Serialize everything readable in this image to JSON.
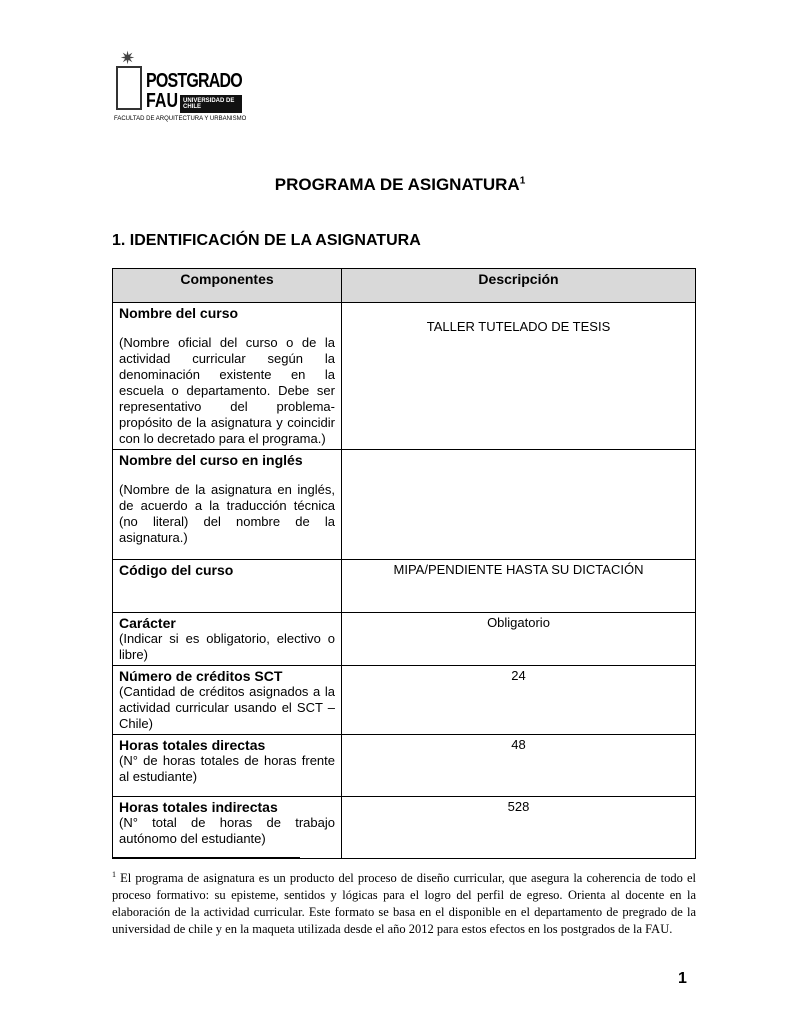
{
  "logo": {
    "title": "POSTGRADO",
    "subtitle": "FAU",
    "university": "UNIVERSIDAD DE CHILE",
    "faculty": "FACULTAD DE ARQUITECTURA Y URBANISMO"
  },
  "title": "PROGRAMA DE ASIGNATURA",
  "title_note": "1",
  "section": "1. IDENTIFICACIÓN DE LA ASIGNATURA",
  "table": {
    "headers": [
      "Componentes",
      "Descripción"
    ],
    "rows": [
      {
        "label": "Nombre del curso",
        "desc": "(Nombre oficial del curso o de la actividad curricular según la denominación existente en la escuela o departamento. Debe ser representativo del problema-propósito de la asignatura y coincidir con lo decretado para el programa.)",
        "value": "TALLER TUTELADO DE TESIS"
      },
      {
        "label": "Nombre del curso en inglés",
        "desc": "(Nombre de la asignatura en inglés, de acuerdo a la traducción técnica (no literal) del nombre de la asignatura.)",
        "value": ""
      },
      {
        "label": "Código del curso",
        "desc": "",
        "value": "MIPA/PENDIENTE HASTA SU DICTACIÓN"
      },
      {
        "label": "Carácter",
        "desc": "(Indicar si es obligatorio, electivo o libre)",
        "value": "Obligatorio"
      },
      {
        "label": "Número de créditos SCT",
        "desc": "(Cantidad de créditos asignados a la actividad curricular usando el SCT – Chile)",
        "value": "24"
      },
      {
        "label": "Horas totales directas",
        "desc": "(N° de horas totales de horas frente al estudiante)",
        "value": "48"
      },
      {
        "label": "Horas totales indirectas",
        "desc": "(N° total de horas de trabajo autónomo del estudiante)",
        "value": "528"
      }
    ]
  },
  "footnote": {
    "mark": "1",
    "text": " El programa de asignatura es un producto del proceso de diseño curricular, que asegura la coherencia de todo el proceso formativo: su episteme, sentidos y lógicas para el logro del perfil de egreso. Orienta al docente en la elaboración de la actividad curricular. Este formato se basa en el disponible en el departamento de pregrado de la universidad de chile y en la maqueta utilizada desde el año 2012 para estos efectos en los postgrados de la FAU."
  },
  "page_number": "1"
}
